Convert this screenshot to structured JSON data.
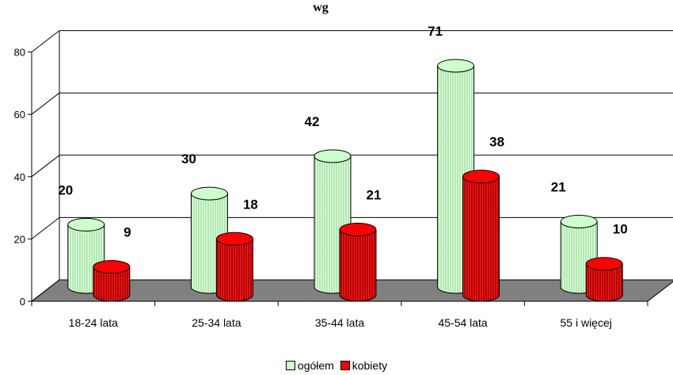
{
  "chart_data": {
    "type": "bar",
    "title": "wg",
    "categories": [
      "18-24 lata",
      "25-34 lata",
      "35-44 lata",
      "45-54 lata",
      "55 i więcej"
    ],
    "series": [
      {
        "name": "ogółem",
        "values": [
          20,
          30,
          42,
          71,
          21
        ],
        "color": "#ccffcc"
      },
      {
        "name": "kobiety",
        "values": [
          9,
          18,
          21,
          38,
          10
        ],
        "color": "#ff0000"
      }
    ],
    "ylim": [
      0,
      80
    ],
    "yticks": [
      "0",
      "20",
      "40",
      "60",
      "80"
    ],
    "legend_position": "bottom",
    "grid": true,
    "floor_color": "#808080"
  }
}
